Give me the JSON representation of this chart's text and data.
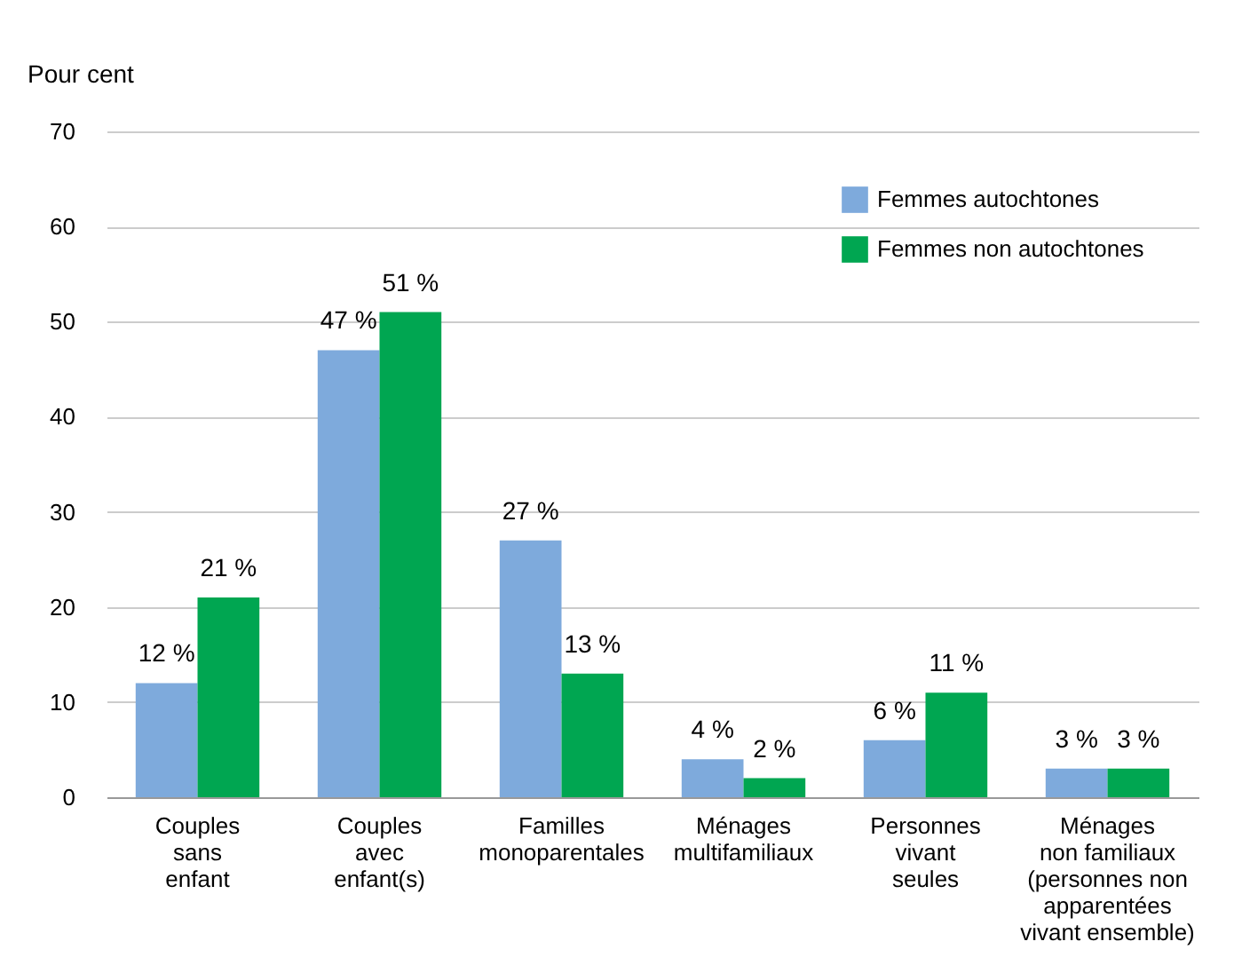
{
  "chart_data": {
    "type": "bar",
    "ylabel": "Pour cent",
    "categories": [
      "Couples\nsans\nenfant",
      "Couples\navec\nenfant(s)",
      "Familles\nmonoparentales",
      "Ménages\nmultifamiliaux",
      "Personnes\nvivant\nseules",
      "Ménages\nnon familiaux\n(personnes non\napparentées\nvivant ensemble)"
    ],
    "series": [
      {
        "name": "Femmes autochtones",
        "color": "#7eaadc",
        "values": [
          12,
          47,
          27,
          4,
          6,
          3
        ],
        "value_labels": [
          "12 %",
          "47 %",
          "27 %",
          "4 %",
          "6 %",
          "3 %"
        ]
      },
      {
        "name": "Femmes non autochtones",
        "color": "#00a651",
        "values": [
          21,
          51,
          13,
          2,
          11,
          3
        ],
        "value_labels": [
          "21 %",
          "51 %",
          "13 %",
          "2 %",
          "11 %",
          "3 %"
        ]
      }
    ],
    "ylim": [
      0,
      70
    ],
    "yticks": [
      0,
      10,
      20,
      30,
      40,
      50,
      60,
      70
    ],
    "grid": "y",
    "legend": "top right"
  }
}
